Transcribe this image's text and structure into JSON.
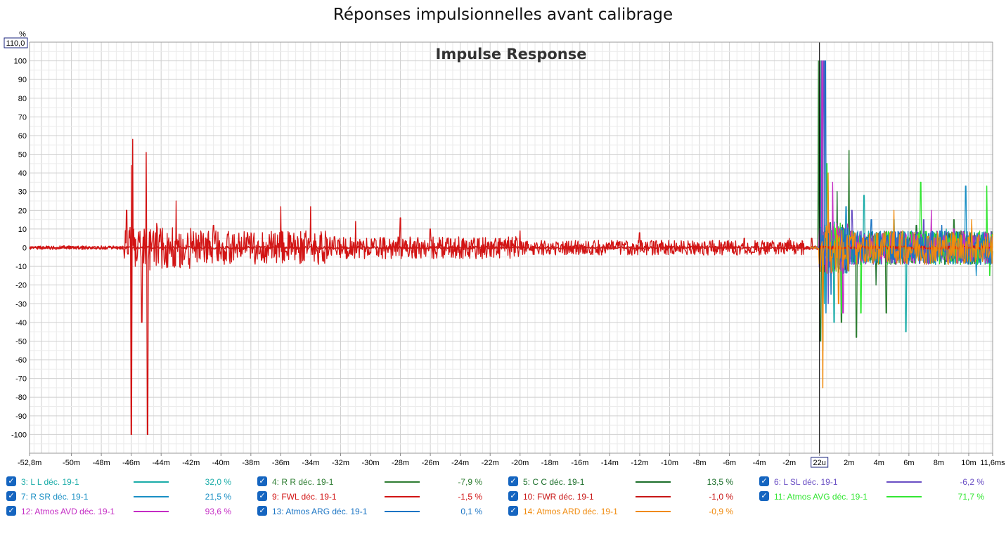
{
  "title": "Réponses impulsionnelles avant calibrage",
  "chart_data": {
    "type": "line",
    "title": "Impulse Response",
    "ylabel": "%",
    "y_top_label": "110,0",
    "ylim": [
      -110,
      110
    ],
    "yticks": [
      100,
      90,
      80,
      70,
      60,
      50,
      40,
      30,
      20,
      10,
      0,
      -10,
      -20,
      -30,
      -40,
      -50,
      -60,
      -70,
      -80,
      -90,
      -100
    ],
    "xlim_ms": [
      -52.8,
      11.6
    ],
    "xticks": [
      {
        "v": -52.8,
        "label": "-52,8m"
      },
      {
        "v": -50,
        "label": "-50m"
      },
      {
        "v": -48,
        "label": "-48m"
      },
      {
        "v": -46,
        "label": "-46m"
      },
      {
        "v": -44,
        "label": "-44m"
      },
      {
        "v": -42,
        "label": "-42m"
      },
      {
        "v": -40,
        "label": "-40m"
      },
      {
        "v": -38,
        "label": "-38m"
      },
      {
        "v": -36,
        "label": "-36m"
      },
      {
        "v": -34,
        "label": "-34m"
      },
      {
        "v": -32,
        "label": "-32m"
      },
      {
        "v": -30,
        "label": "-30m"
      },
      {
        "v": -28,
        "label": "-28m"
      },
      {
        "v": -26,
        "label": "-26m"
      },
      {
        "v": -24,
        "label": "-24m"
      },
      {
        "v": -22,
        "label": "-22m"
      },
      {
        "v": -20,
        "label": "-20m"
      },
      {
        "v": -18,
        "label": "-18m"
      },
      {
        "v": -16,
        "label": "-16m"
      },
      {
        "v": -14,
        "label": "-14m"
      },
      {
        "v": -12,
        "label": "-12m"
      },
      {
        "v": -10,
        "label": "-10m"
      },
      {
        "v": -8,
        "label": "-8m"
      },
      {
        "v": -6,
        "label": "-6m"
      },
      {
        "v": -4,
        "label": "-4m"
      },
      {
        "v": -2,
        "label": "-2m"
      },
      {
        "v": 0.022,
        "label": "22u",
        "boxed": true
      },
      {
        "v": 2,
        "label": "2m"
      },
      {
        "v": 4,
        "label": "4m"
      },
      {
        "v": 6,
        "label": "6m"
      },
      {
        "v": 8,
        "label": "8m"
      },
      {
        "v": 10,
        "label": "10m"
      },
      {
        "v": 11.6,
        "label": "11,6ms"
      }
    ],
    "cursor_x": 0.022,
    "grid": true,
    "legend_position": "bottom",
    "series": [
      {
        "name": "3: L L déc. 19-1",
        "value": "32,0 %",
        "color": "#1aaca8",
        "peaks": [
          [
            0.22,
            100
          ],
          [
            0.35,
            -30
          ],
          [
            1.0,
            -40
          ],
          [
            3.0,
            28
          ],
          [
            5.0,
            15
          ],
          [
            5.8,
            -45
          ],
          [
            8.5,
            10
          ]
        ]
      },
      {
        "name": "4: R R déc. 19-1",
        "value": "-7,9 %",
        "color": "#2e7d32",
        "peaks": [
          [
            -0.05,
            100
          ],
          [
            0.1,
            -50
          ],
          [
            2.0,
            52
          ],
          [
            2.5,
            -48
          ],
          [
            1.5,
            -40
          ],
          [
            4.5,
            -35
          ],
          [
            9.0,
            15
          ]
        ]
      },
      {
        "name": "5: C C déc. 19-1",
        "value": "13,5 %",
        "color": "#1b6e2a",
        "peaks": [
          [
            0.05,
            100
          ],
          [
            0.25,
            -55
          ],
          [
            1.2,
            30
          ],
          [
            3.8,
            -20
          ],
          [
            6.5,
            12
          ]
        ]
      },
      {
        "name": "6: L SL déc. 19-1",
        "value": "-6,2 %",
        "color": "#6a4fc4",
        "peaks": [
          [
            0.3,
            100
          ],
          [
            0.6,
            -30
          ],
          [
            2.2,
            20
          ],
          [
            7.0,
            15
          ]
        ]
      },
      {
        "name": "7: R SR déc. 19-1",
        "value": "21,5 %",
        "color": "#1a8fc4",
        "peaks": [
          [
            0.15,
            100
          ],
          [
            0.45,
            -35
          ],
          [
            1.8,
            22
          ],
          [
            9.8,
            33
          ],
          [
            10.5,
            -15
          ]
        ]
      },
      {
        "name": "9: FWL déc. 19-1",
        "value": "-1,5 %",
        "color": "#d21414",
        "peaks": [
          [
            -46.3,
            20
          ],
          [
            -46.0,
            44
          ],
          [
            -45.9,
            58
          ],
          [
            -46.0,
            -100
          ],
          [
            -45.3,
            -40
          ],
          [
            -45.0,
            51
          ],
          [
            -44.9,
            -100
          ],
          [
            -44.3,
            13
          ],
          [
            -43.0,
            25
          ],
          [
            -40.5,
            12
          ],
          [
            -36.0,
            22
          ],
          [
            -34.0,
            22
          ],
          [
            -31.0,
            14
          ],
          [
            -28.0,
            16
          ],
          [
            -26.0,
            10
          ],
          [
            -20.0,
            9
          ],
          [
            -12.0,
            8
          ],
          [
            -5.0,
            5
          ]
        ]
      },
      {
        "name": "10: FWR déc. 19-1",
        "value": "-1,0 %",
        "color": "#c81616",
        "peaks": [
          [
            -50.5,
            1
          ],
          [
            -48.0,
            1
          ],
          [
            -2.0,
            5
          ],
          [
            -0.5,
            5
          ]
        ]
      },
      {
        "name": "11: Atmos AVG déc. 19-1",
        "value": "71,7 %",
        "color": "#33e633",
        "peaks": [
          [
            0.5,
            45
          ],
          [
            1.5,
            -35
          ],
          [
            2.8,
            -35
          ],
          [
            6.8,
            35
          ],
          [
            11.2,
            33
          ],
          [
            11.4,
            -15
          ]
        ]
      },
      {
        "name": "12: Atmos AVD déc. 19-1",
        "value": "93,6 %",
        "color": "#c42bc4",
        "peaks": [
          [
            0.2,
            100
          ],
          [
            0.9,
            35
          ],
          [
            1.6,
            -35
          ],
          [
            7.5,
            20
          ],
          [
            9.0,
            10
          ]
        ]
      },
      {
        "name": "13: Atmos ARG déc. 19-1",
        "value": "0,1 %",
        "color": "#1a74c4",
        "peaks": [
          [
            0.4,
            100
          ],
          [
            0.8,
            -25
          ],
          [
            3.5,
            15
          ],
          [
            8.2,
            12
          ]
        ]
      },
      {
        "name": "14: Atmos ARD déc. 19-1",
        "value": "-0,9 %",
        "color": "#f08a0c",
        "peaks": [
          [
            0.25,
            -75
          ],
          [
            0.6,
            40
          ],
          [
            1.3,
            -30
          ],
          [
            5.0,
            20
          ],
          [
            10.2,
            15
          ]
        ]
      }
    ]
  }
}
